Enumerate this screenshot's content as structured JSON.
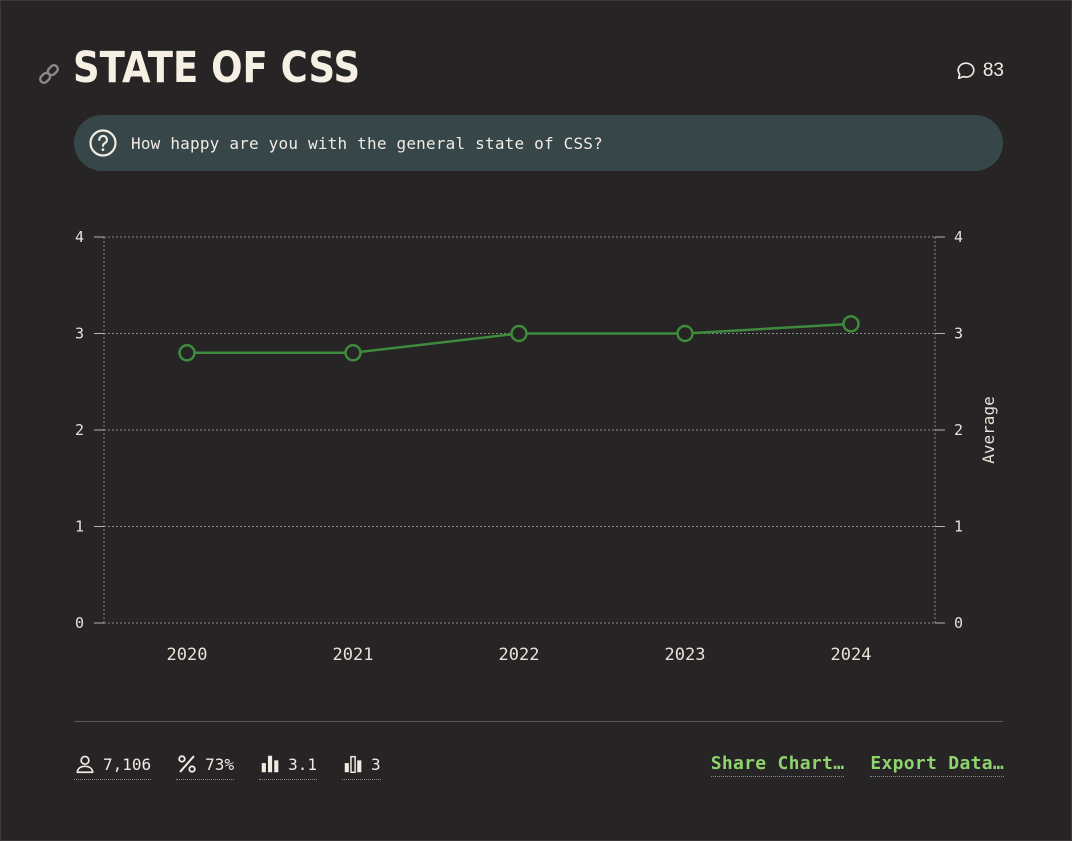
{
  "header": {
    "title": "STATE OF CSS",
    "link_icon": "link-icon",
    "comment_icon": "speech-bubble-icon",
    "comment_count": "83"
  },
  "question": {
    "icon": "question-circle-icon",
    "text": "How happy are you with the general state of CSS?"
  },
  "chart_data": {
    "type": "line",
    "x": [
      "2020",
      "2021",
      "2022",
      "2023",
      "2024"
    ],
    "series": [
      {
        "values": [
          2.8,
          2.8,
          3.0,
          3.0,
          3.1
        ]
      }
    ],
    "ylim": [
      0,
      4
    ],
    "yticks": [
      "0",
      "1",
      "2",
      "3",
      "4"
    ],
    "ylabel_right": "Average",
    "grid": true,
    "line_color": "#3f8a3c"
  },
  "footer": {
    "stats": [
      {
        "icon": "user-icon",
        "value": "7,106"
      },
      {
        "icon": "percent-icon",
        "value": "73%"
      },
      {
        "icon": "bar-chart-average-icon",
        "value": "3.1"
      },
      {
        "icon": "bar-chart-median-icon",
        "value": "3"
      }
    ],
    "share_label": "Share Chart…",
    "export_label": "Export Data…"
  },
  "colors": {
    "background": "#262425",
    "question_bg": "#364649",
    "accent_green": "#8fd36e"
  }
}
